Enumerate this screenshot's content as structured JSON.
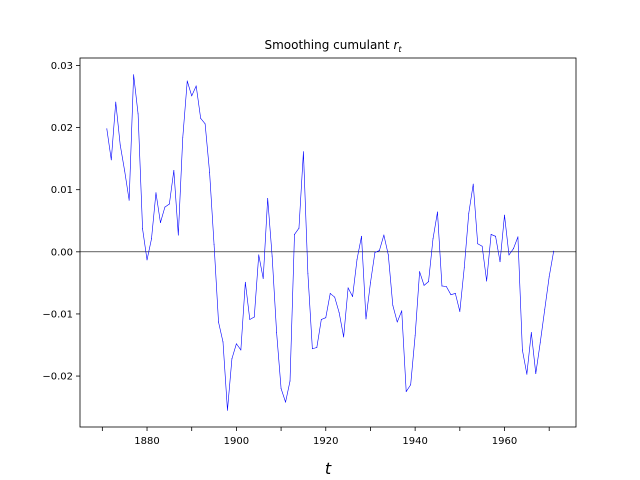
{
  "chart_data": {
    "type": "line",
    "title": "Smoothing cumulant",
    "title_math": "r",
    "title_math_sub": "t",
    "xlabel": "t",
    "ylabel": "",
    "xlim": [
      1865,
      1976
    ],
    "ylim": [
      -0.0282,
      0.0312
    ],
    "xticks": [
      {
        "value": 1870,
        "label": ""
      },
      {
        "value": 1880,
        "label": "1880"
      },
      {
        "value": 1890,
        "label": ""
      },
      {
        "value": 1900,
        "label": "1900"
      },
      {
        "value": 1910,
        "label": ""
      },
      {
        "value": 1920,
        "label": "1920"
      },
      {
        "value": 1930,
        "label": ""
      },
      {
        "value": 1940,
        "label": "1940"
      },
      {
        "value": 1950,
        "label": ""
      },
      {
        "value": 1960,
        "label": "1960"
      },
      {
        "value": 1970,
        "label": ""
      }
    ],
    "yticks": [
      {
        "value": -0.02,
        "label": "−0.02"
      },
      {
        "value": -0.01,
        "label": "−0.01"
      },
      {
        "value": 0.0,
        "label": "0.00"
      },
      {
        "value": 0.01,
        "label": "0.01"
      },
      {
        "value": 0.02,
        "label": "0.02"
      },
      {
        "value": 0.03,
        "label": "0.03"
      }
    ],
    "reference_line": {
      "y": 0,
      "color": "#000000"
    },
    "grid": false,
    "series": [
      {
        "color": "#0000ff",
        "x": [
          1871,
          1872,
          1873,
          1874,
          1875,
          1876,
          1877,
          1878,
          1879,
          1880,
          1881,
          1882,
          1883,
          1884,
          1885,
          1886,
          1887,
          1888,
          1889,
          1890,
          1891,
          1892,
          1893,
          1894,
          1895,
          1896,
          1897,
          1898,
          1899,
          1900,
          1901,
          1902,
          1903,
          1904,
          1905,
          1906,
          1907,
          1908,
          1909,
          1910,
          1911,
          1912,
          1913,
          1914,
          1915,
          1916,
          1917,
          1918,
          1919,
          1920,
          1921,
          1922,
          1923,
          1924,
          1925,
          1926,
          1927,
          1928,
          1929,
          1930,
          1931,
          1932,
          1933,
          1934,
          1935,
          1936,
          1937,
          1938,
          1939,
          1940,
          1941,
          1942,
          1943,
          1944,
          1945,
          1946,
          1947,
          1948,
          1949,
          1950,
          1951,
          1952,
          1953,
          1954,
          1955,
          1956,
          1957,
          1958,
          1959,
          1960,
          1961,
          1962,
          1963,
          1964,
          1965,
          1966,
          1967,
          1968,
          1969,
          1970,
          1971
        ],
        "y": [
          0.0198,
          0.0148,
          0.0241,
          0.0172,
          0.013,
          0.0083,
          0.0285,
          0.0222,
          0.0037,
          -0.0013,
          0.0021,
          0.0095,
          0.0047,
          0.0072,
          0.0077,
          0.0131,
          0.0027,
          0.0184,
          0.0275,
          0.0251,
          0.0267,
          0.0215,
          0.0206,
          0.0128,
          0.0012,
          -0.0113,
          -0.0145,
          -0.0255,
          -0.0172,
          -0.0148,
          -0.0158,
          -0.0049,
          -0.0109,
          -0.0105,
          -0.0005,
          -0.0043,
          0.0086,
          -0.0007,
          -0.013,
          -0.022,
          -0.0242,
          -0.0208,
          0.0028,
          0.0038,
          0.0161,
          -0.0035,
          -0.0156,
          -0.0154,
          -0.0109,
          -0.0106,
          -0.0067,
          -0.0073,
          -0.0098,
          -0.0137,
          -0.0058,
          -0.0072,
          -0.0012,
          0.0025,
          -0.0108,
          -0.005,
          -0.0001,
          0.0002,
          0.0027,
          -0.0005,
          -0.0086,
          -0.0113,
          -0.0095,
          -0.0225,
          -0.0214,
          -0.0135,
          -0.0032,
          -0.0054,
          -0.0048,
          0.0021,
          0.0064,
          -0.0055,
          -0.0056,
          -0.0069,
          -0.0067,
          -0.0096,
          -0.0025,
          0.0062,
          0.0109,
          0.0013,
          0.0009,
          -0.0047,
          0.0028,
          0.0025,
          -0.0016,
          0.0059,
          -0.0005,
          0.0005,
          0.0024,
          -0.0158,
          -0.0197,
          -0.013,
          -0.0196,
          -0.0146,
          -0.0093,
          -0.004,
          0.0001
        ]
      }
    ]
  }
}
